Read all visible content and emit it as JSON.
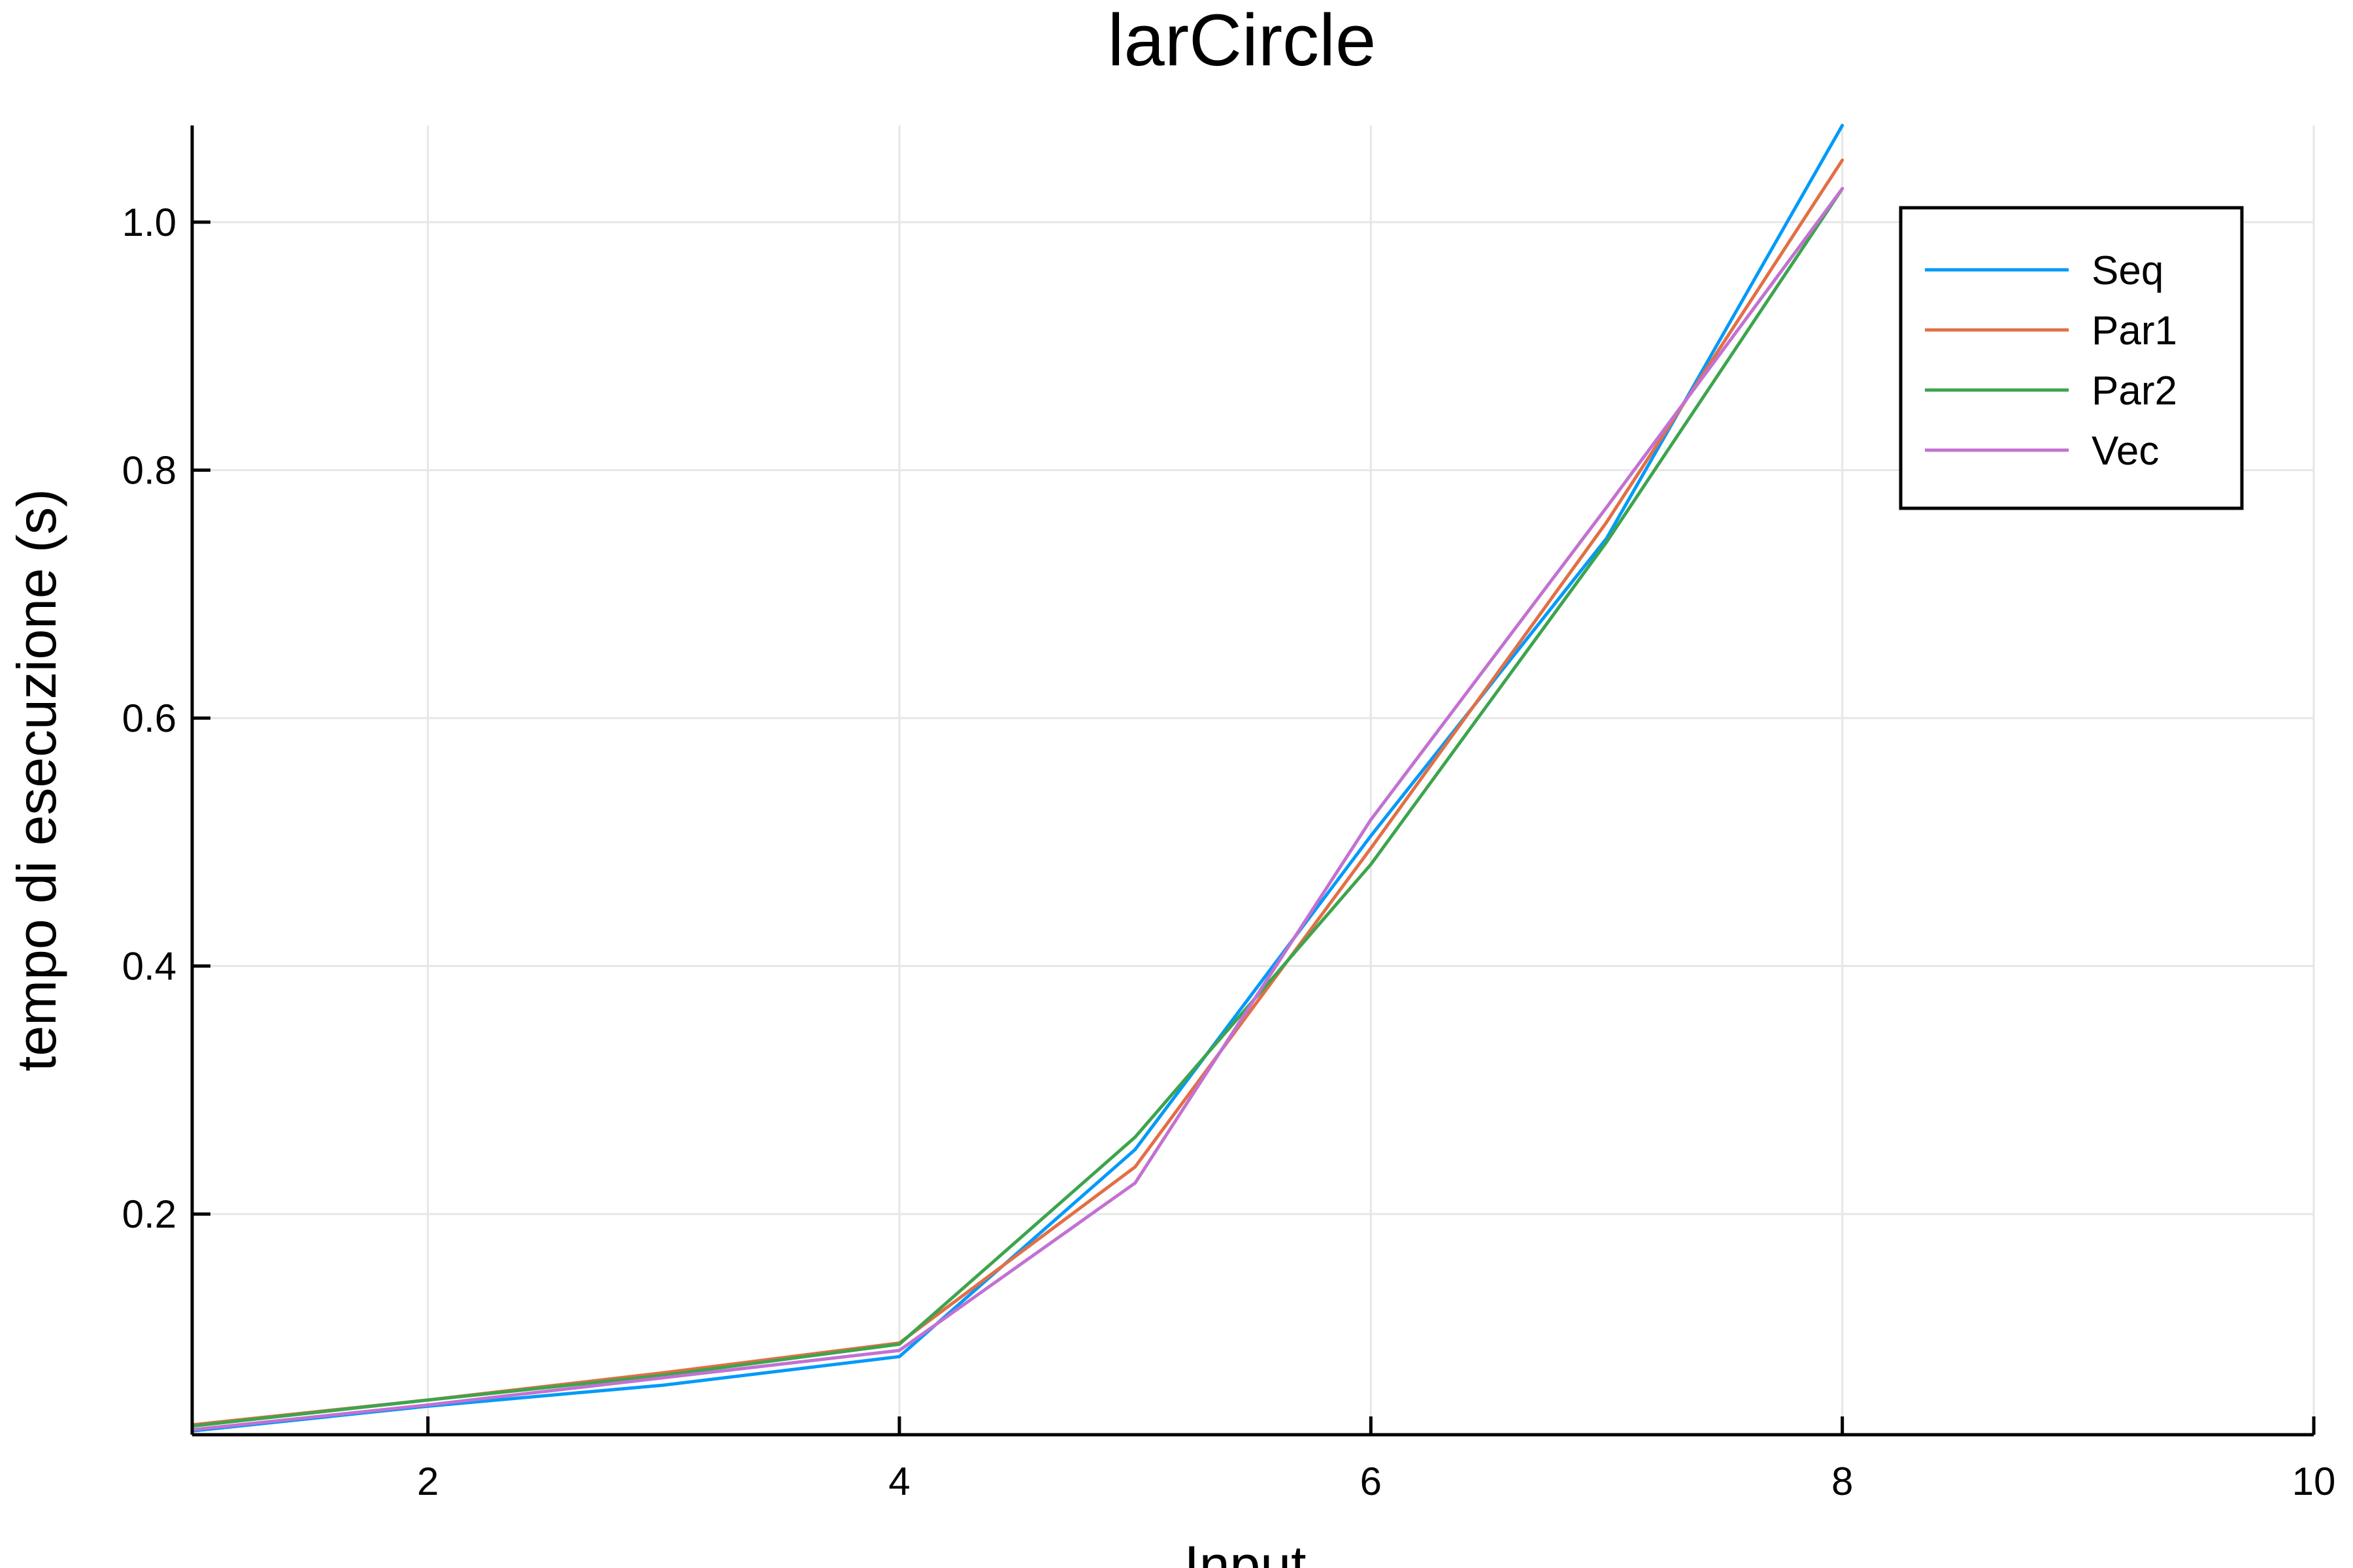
{
  "chart_data": {
    "type": "line",
    "title": "larCircle",
    "xlabel": "Input",
    "ylabel": "tempo di esecuzione (s)",
    "xlim": [
      1,
      10
    ],
    "ylim": [
      0.022,
      1.078
    ],
    "xticks": [
      2,
      4,
      6,
      8,
      10
    ],
    "xtick_labels": [
      "2",
      "4",
      "6",
      "8",
      "10"
    ],
    "yticks": [
      0.2,
      0.4,
      0.6,
      0.8,
      1.0
    ],
    "ytick_labels": [
      "0.2",
      "0.4",
      "0.6",
      "0.8",
      "1.0"
    ],
    "grid": true,
    "legend_position": "top-right",
    "x": [
      1,
      2,
      3,
      4,
      5,
      6,
      7,
      8
    ],
    "series": [
      {
        "name": "Seq",
        "color": "#009af9",
        "values": [
          0.025,
          0.045,
          0.062,
          0.085,
          0.252,
          0.505,
          0.745,
          1.078
        ]
      },
      {
        "name": "Par1",
        "color": "#e26f46",
        "values": [
          0.03,
          0.05,
          0.072,
          0.096,
          0.238,
          0.495,
          0.758,
          1.05
        ]
      },
      {
        "name": "Par2",
        "color": "#3da44d",
        "values": [
          0.029,
          0.05,
          0.07,
          0.095,
          0.262,
          0.482,
          0.742,
          1.027
        ]
      },
      {
        "name": "Vec",
        "color": "#c271d2",
        "values": [
          0.026,
          0.046,
          0.068,
          0.09,
          0.225,
          0.518,
          0.77,
          1.027
        ]
      }
    ]
  }
}
